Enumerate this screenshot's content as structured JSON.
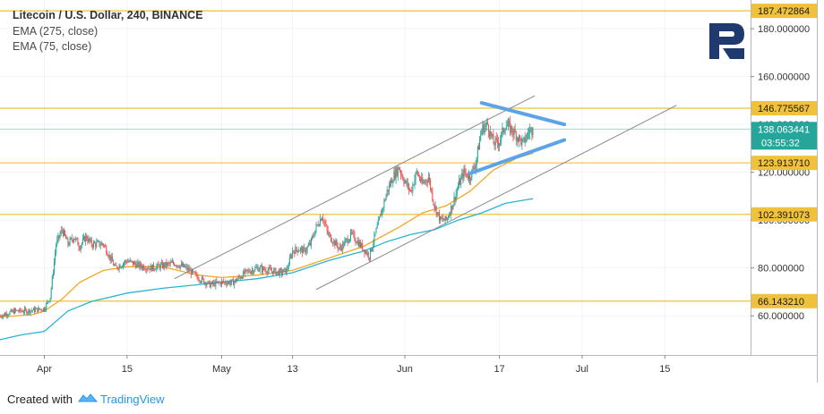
{
  "header": {
    "title": "Litecoin / U.S. Dollar, 240, BINANCE",
    "indicators": [
      "EMA (275, close)",
      "EMA (75, close)"
    ]
  },
  "footer": {
    "created_with": "Created with",
    "brand": "TradingView"
  },
  "colors": {
    "level_line": "#f0c13a",
    "ema75": "#f5a623",
    "ema275": "#26b5d6",
    "channel": "#8a8a8a",
    "triangle": "#5da3e8",
    "up_candle": "#26a69a",
    "down_candle": "#ef5350",
    "price_badge": "#26a69a",
    "level_badge": "#f0c13a"
  },
  "chart_data": {
    "type": "candlestick",
    "title": "Litecoin / U.S. Dollar, 240, BINANCE",
    "ylim": [
      44,
      192
    ],
    "y_ticks": [
      60,
      80,
      100,
      120,
      140,
      160,
      180
    ],
    "y_tick_labels": [
      "60.000000",
      "80.000000",
      "100.000000",
      "120.000000",
      "140.000000",
      "160.000000",
      "180.000000"
    ],
    "x_ticks": [
      {
        "day": 0,
        "label": "Apr"
      },
      {
        "day": 14,
        "label": "15"
      },
      {
        "day": 30,
        "label": "May"
      },
      {
        "day": 42,
        "label": "13"
      },
      {
        "day": 61,
        "label": "Jun"
      },
      {
        "day": 77,
        "label": "17"
      },
      {
        "day": 91,
        "label": "Jul"
      },
      {
        "day": 105,
        "label": "15"
      }
    ],
    "x_range": [
      -7.5,
      119.5
    ],
    "levels": [
      {
        "value": 187.472864,
        "label": "187.472864"
      },
      {
        "value": 146.775567,
        "label": "146.775567"
      },
      {
        "value": 123.91371,
        "label": "123.913710"
      },
      {
        "value": 102.391073,
        "label": "102.391073"
      },
      {
        "value": 66.14321,
        "label": "66.143210"
      }
    ],
    "last_price": {
      "value": 138.063441,
      "label": "138.063441",
      "countdown": "03:55:32"
    },
    "price_path": [
      [
        -7.5,
        60
      ],
      [
        -5,
        62
      ],
      [
        -3,
        62
      ],
      [
        0,
        63
      ],
      [
        1,
        68
      ],
      [
        2,
        90
      ],
      [
        3,
        96
      ],
      [
        4,
        90
      ],
      [
        5,
        93
      ],
      [
        6,
        89
      ],
      [
        7,
        93
      ],
      [
        8,
        90
      ],
      [
        10,
        90
      ],
      [
        11,
        85
      ],
      [
        12,
        80
      ],
      [
        14,
        83
      ],
      [
        16,
        81
      ],
      [
        18,
        80
      ],
      [
        20,
        81
      ],
      [
        22,
        82
      ],
      [
        24,
        80
      ],
      [
        26,
        76
      ],
      [
        28,
        73
      ],
      [
        30,
        74
      ],
      [
        32,
        74
      ],
      [
        34,
        78
      ],
      [
        36,
        80
      ],
      [
        38,
        79
      ],
      [
        40,
        78
      ],
      [
        41,
        79
      ],
      [
        42,
        87
      ],
      [
        43,
        88
      ],
      [
        44,
        87
      ],
      [
        45,
        90
      ],
      [
        46,
        97
      ],
      [
        47,
        102
      ],
      [
        48,
        94
      ],
      [
        50,
        88
      ],
      [
        52,
        94
      ],
      [
        54,
        88
      ],
      [
        55,
        85
      ],
      [
        56,
        94
      ],
      [
        57,
        103
      ],
      [
        58,
        112
      ],
      [
        59,
        118
      ],
      [
        60,
        122
      ],
      [
        61,
        116
      ],
      [
        62,
        112
      ],
      [
        63,
        120
      ],
      [
        64,
        115
      ],
      [
        65,
        118
      ],
      [
        66,
        106
      ],
      [
        67,
        100
      ],
      [
        68,
        100
      ],
      [
        69,
        106
      ],
      [
        70,
        114
      ],
      [
        71,
        120
      ],
      [
        72,
        118
      ],
      [
        73,
        124
      ],
      [
        74,
        138
      ],
      [
        75,
        140
      ],
      [
        76,
        132
      ],
      [
        77,
        133
      ],
      [
        78,
        140
      ],
      [
        79,
        138
      ],
      [
        80,
        135
      ],
      [
        81,
        132
      ],
      [
        82,
        137
      ],
      [
        82.7,
        138.06
      ]
    ],
    "series": [
      {
        "name": "EMA (75, close)",
        "points": [
          [
            -7.5,
            59.5
          ],
          [
            -2,
            60.5
          ],
          [
            0,
            62
          ],
          [
            3,
            67
          ],
          [
            6,
            74
          ],
          [
            10,
            79
          ],
          [
            14,
            80.5
          ],
          [
            20,
            80.5
          ],
          [
            26,
            77
          ],
          [
            30,
            76
          ],
          [
            36,
            77
          ],
          [
            42,
            79
          ],
          [
            48,
            84
          ],
          [
            54,
            89
          ],
          [
            60,
            97
          ],
          [
            64,
            103
          ],
          [
            68,
            106
          ],
          [
            72,
            112
          ],
          [
            76,
            121
          ],
          [
            80,
            126
          ],
          [
            82.7,
            128
          ]
        ]
      },
      {
        "name": "EMA (275, close)",
        "points": [
          [
            -7.5,
            50
          ],
          [
            -4,
            52
          ],
          [
            0,
            53.5
          ],
          [
            4,
            62
          ],
          [
            8,
            66
          ],
          [
            14,
            69.5
          ],
          [
            20,
            71.5
          ],
          [
            26,
            73
          ],
          [
            30,
            74
          ],
          [
            36,
            75.5
          ],
          [
            42,
            78
          ],
          [
            48,
            83
          ],
          [
            54,
            87
          ],
          [
            58,
            91
          ],
          [
            62,
            94
          ],
          [
            66,
            96
          ],
          [
            70,
            100
          ],
          [
            74,
            103
          ],
          [
            78,
            107
          ],
          [
            82.7,
            109
          ]
        ]
      }
    ],
    "channel_lines": [
      {
        "from": [
          22,
          75.5
        ],
        "to": [
          83,
          152
        ]
      },
      {
        "from": [
          46,
          71
        ],
        "to": [
          107,
          148
        ]
      }
    ],
    "triangle_lines": [
      {
        "from": [
          74,
          149
        ],
        "to": [
          88,
          140
        ]
      },
      {
        "from": [
          72,
          119.5
        ],
        "to": [
          88,
          133.5
        ]
      }
    ]
  }
}
